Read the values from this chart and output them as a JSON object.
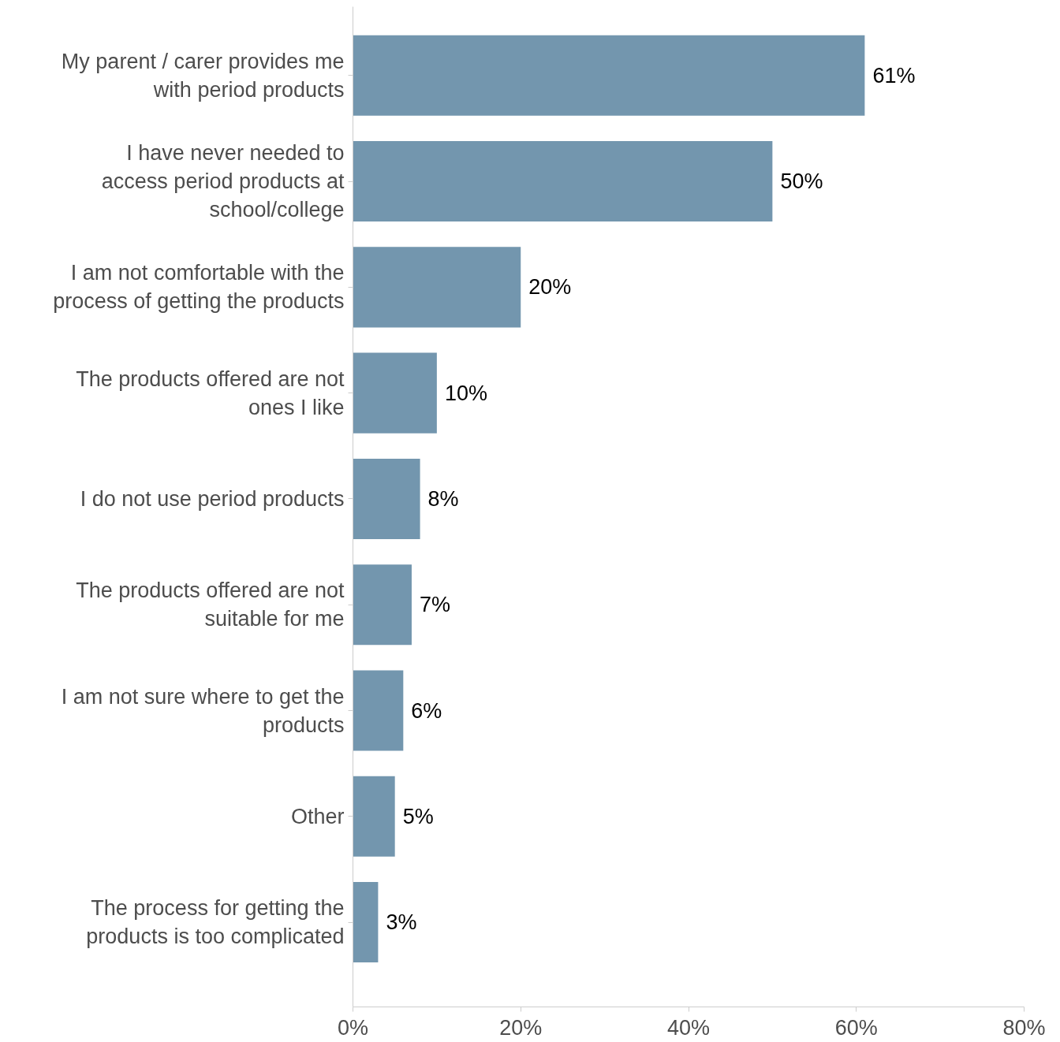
{
  "chart_data": {
    "type": "bar",
    "orientation": "horizontal",
    "categories": [
      "My parent / carer provides me\nwith period products",
      "I have never needed to\naccess period products at\nschool/college",
      "I am not comfortable with the\nprocess of getting the products",
      "The products offered are not\nones I like",
      "I do not use period products",
      "The products offered are not\nsuitable for me",
      "I am not sure where to get the\nproducts",
      "Other",
      "The process for getting the\nproducts is too complicated"
    ],
    "values": [
      61,
      50,
      20,
      10,
      8,
      7,
      6,
      5,
      3
    ],
    "value_labels": [
      "61%",
      "50%",
      "20%",
      "10%",
      "8%",
      "7%",
      "6%",
      "5%",
      "3%"
    ],
    "color": "#7396ae",
    "xlim": [
      0,
      80
    ],
    "xticks": [
      {
        "value": 0,
        "label": "0%"
      },
      {
        "value": 20,
        "label": "20%"
      },
      {
        "value": 40,
        "label": "40%"
      },
      {
        "value": 60,
        "label": "60%"
      },
      {
        "value": 80,
        "label": "80%"
      }
    ],
    "grid": false
  }
}
